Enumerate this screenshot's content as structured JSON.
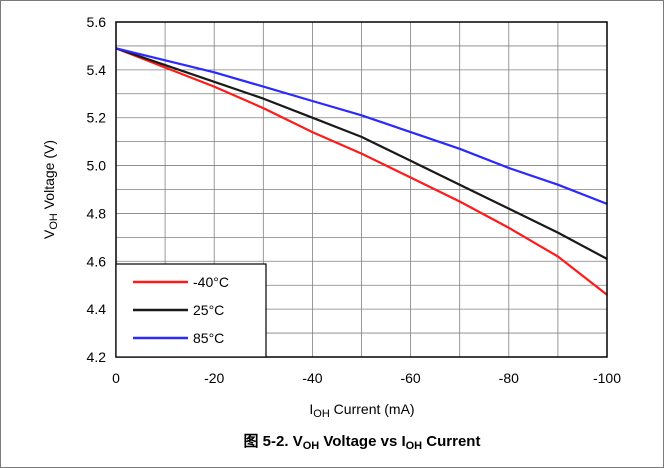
{
  "chart_data": {
    "type": "line",
    "title": "",
    "caption": {
      "prefix": "图 5-2. V",
      "sub1": "OH",
      "middle": " Voltage vs I",
      "sub2": "OH",
      "suffix": " Current"
    },
    "xlabel": {
      "main": "I",
      "sub": "OH",
      "rest": " Current (mA)"
    },
    "ylabel": {
      "main": "V",
      "sub": "OH",
      "rest": " Voltage (V)"
    },
    "xlim": [
      0,
      -100
    ],
    "ylim": [
      4.2,
      5.6
    ],
    "x_ticks": [
      "0",
      "-20",
      "-40",
      "-60",
      "-80",
      "-100"
    ],
    "y_ticks": [
      "4.2",
      "4.4",
      "4.6",
      "4.8",
      "5.0",
      "5.2",
      "5.4",
      "5.6"
    ],
    "grid": true,
    "legend_position": "bottom-left",
    "series": [
      {
        "name": "-40°C",
        "color": "#ff1a1a",
        "x": [
          0,
          -10,
          -20,
          -30,
          -40,
          -50,
          -60,
          -70,
          -80,
          -90,
          -100
        ],
        "y": [
          5.49,
          5.41,
          5.33,
          5.24,
          5.14,
          5.05,
          4.95,
          4.85,
          4.74,
          4.62,
          4.46
        ]
      },
      {
        "name": "25°C",
        "color": "#1a1a1a",
        "x": [
          0,
          -10,
          -20,
          -30,
          -40,
          -50,
          -60,
          -70,
          -80,
          -90,
          -100
        ],
        "y": [
          5.49,
          5.42,
          5.35,
          5.28,
          5.2,
          5.12,
          5.02,
          4.92,
          4.82,
          4.72,
          4.61
        ]
      },
      {
        "name": "85°C",
        "color": "#2a2aff",
        "x": [
          0,
          -10,
          -20,
          -30,
          -40,
          -50,
          -60,
          -70,
          -80,
          -90,
          -100
        ],
        "y": [
          5.49,
          5.44,
          5.39,
          5.33,
          5.27,
          5.21,
          5.14,
          5.07,
          4.99,
          4.92,
          4.84
        ]
      }
    ]
  }
}
